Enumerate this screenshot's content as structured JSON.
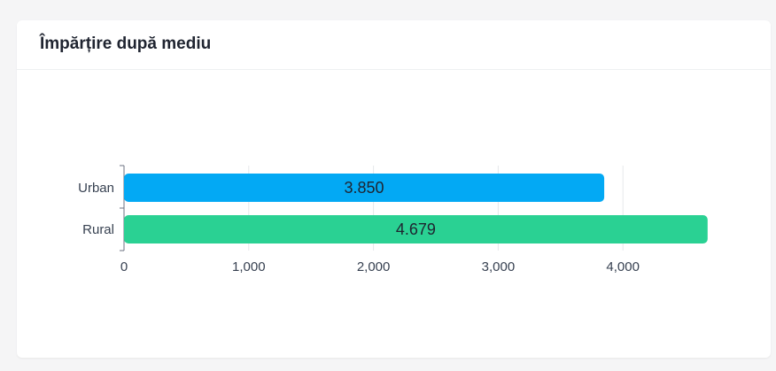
{
  "card": {
    "title": "Împărțire după mediu"
  },
  "chart_data": {
    "type": "bar",
    "orientation": "horizontal",
    "title": "Împărțire după mediu",
    "categories": [
      "Urban",
      "Rural"
    ],
    "values": [
      3850,
      4679
    ],
    "value_labels": [
      "3.850",
      "4.679"
    ],
    "colors": [
      "#03a9f4",
      "#2ad193"
    ],
    "xlim": [
      0,
      4700
    ],
    "xticks": [
      0,
      1000,
      2000,
      3000,
      4000
    ],
    "xtick_labels": [
      "0",
      "1,000",
      "2,000",
      "3,000",
      "4,000"
    ],
    "grid": true,
    "legend": "none"
  }
}
